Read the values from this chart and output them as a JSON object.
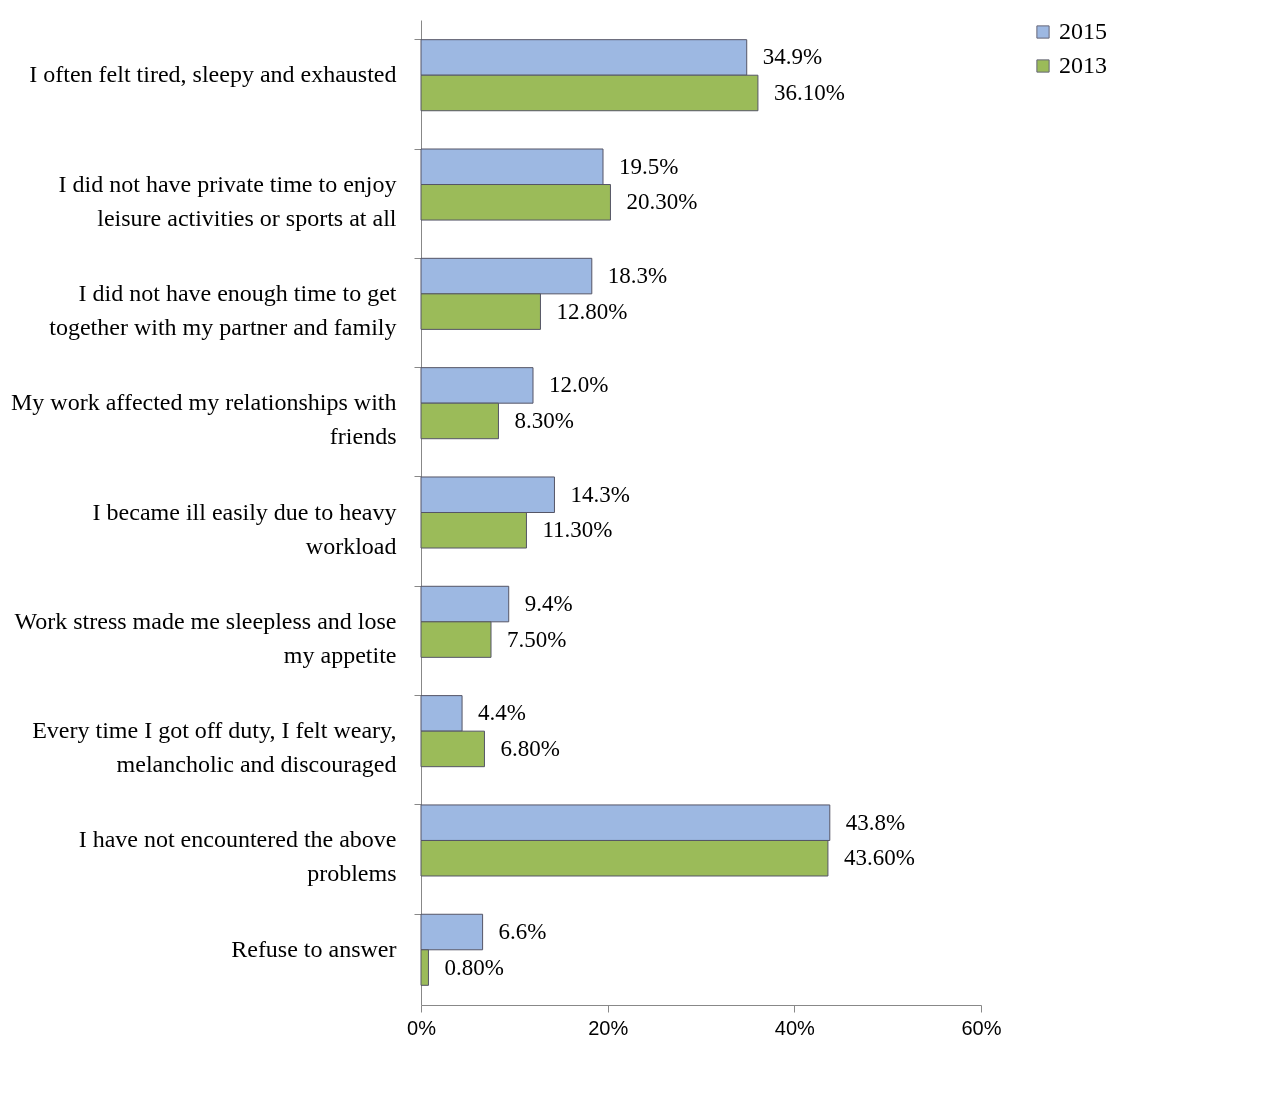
{
  "chart_data": {
    "type": "bar",
    "orientation": "horizontal",
    "categories": [
      "I often felt tired, sleepy and exhausted",
      "I did not have private time to enjoy leisure activities or sports at all",
      "I did not have enough time to get together with my partner and family",
      "My work affected my relationships with friends",
      "I became ill easily due to heavy workload",
      "Work stress made me sleepless and lose my appetite",
      "Every time I got off duty, I felt weary, melancholic and discouraged",
      "I have not encountered the above problems",
      "Refuse to answer"
    ],
    "series": [
      {
        "name": "2015",
        "color": "#9db8e2",
        "values": [
          34.9,
          19.5,
          18.3,
          12.0,
          14.3,
          9.4,
          4.4,
          43.8,
          6.6
        ],
        "value_labels": [
          "34.9%",
          "19.5%",
          "18.3%",
          "12.0%",
          "14.3%",
          "9.4%",
          "4.4%",
          "43.8%",
          "6.6%"
        ]
      },
      {
        "name": "2013",
        "color": "#9bbb59",
        "values": [
          36.1,
          20.3,
          12.8,
          8.3,
          11.3,
          7.5,
          6.8,
          43.6,
          0.8
        ],
        "value_labels": [
          "36.10%",
          "20.30%",
          "12.80%",
          "8.30%",
          "11.30%",
          "7.50%",
          "6.80%",
          "43.60%",
          "0.80%"
        ]
      }
    ],
    "xlim": [
      0,
      60
    ],
    "xticks": [
      {
        "value": 0,
        "label": "0%"
      },
      {
        "value": 20,
        "label": "20%"
      },
      {
        "value": 40,
        "label": "40%"
      },
      {
        "value": 60,
        "label": "60%"
      }
    ],
    "grid": false,
    "legend": "top right"
  }
}
